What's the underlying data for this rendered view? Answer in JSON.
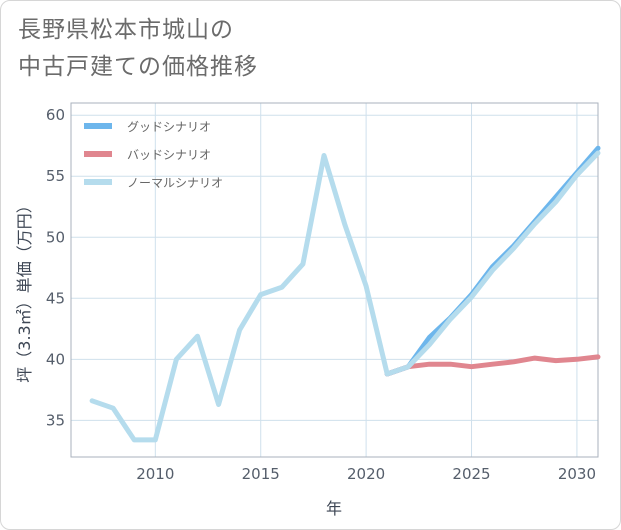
{
  "title_lines": [
    "長野県松本市城山の",
    "中古戸建ての価格推移"
  ],
  "chart_data": {
    "type": "line",
    "title": "長野県松本市城山の中古戸建ての価格推移",
    "xlabel": "年",
    "ylabel": "坪（3.3㎡）単価（万円）",
    "xlim": [
      2006,
      2031
    ],
    "ylim": [
      32,
      61
    ],
    "xticks": [
      2010,
      2015,
      2020,
      2025,
      2030
    ],
    "yticks": [
      35,
      40,
      45,
      50,
      55,
      60
    ],
    "grid": true,
    "legend_position": "top-left",
    "series": [
      {
        "name": "グッドシナリオ",
        "color": "#6db6ec",
        "x": [
          2021,
          2022,
          2023,
          2024,
          2025,
          2026,
          2027,
          2028,
          2029,
          2030,
          2031
        ],
        "y": [
          38.8,
          39.4,
          41.8,
          43.4,
          45.3,
          47.6,
          49.3,
          51.3,
          53.3,
          55.3,
          57.3
        ]
      },
      {
        "name": "バッドシナリオ",
        "color": "#e0868f",
        "x": [
          2021,
          2022,
          2023,
          2024,
          2025,
          2026,
          2027,
          2028,
          2029,
          2030,
          2031
        ],
        "y": [
          38.8,
          39.4,
          39.6,
          39.6,
          39.4,
          39.6,
          39.8,
          40.1,
          39.9,
          40.0,
          40.2
        ]
      },
      {
        "name": "ノーマルシナリオ",
        "color": "#b5dced",
        "x": [
          2007,
          2008,
          2009,
          2010,
          2011,
          2012,
          2013,
          2014,
          2015,
          2016,
          2017,
          2018,
          2019,
          2020,
          2021,
          2022,
          2023,
          2024,
          2025,
          2026,
          2027,
          2028,
          2029,
          2030,
          2031
        ],
        "y": [
          36.6,
          36.0,
          33.4,
          33.4,
          40.0,
          41.9,
          36.3,
          42.4,
          45.3,
          45.9,
          47.8,
          56.7,
          51.0,
          46.0,
          38.8,
          39.4,
          41.2,
          43.3,
          45.1,
          47.3,
          49.1,
          51.1,
          52.9,
          55.1,
          56.9
        ]
      }
    ]
  }
}
